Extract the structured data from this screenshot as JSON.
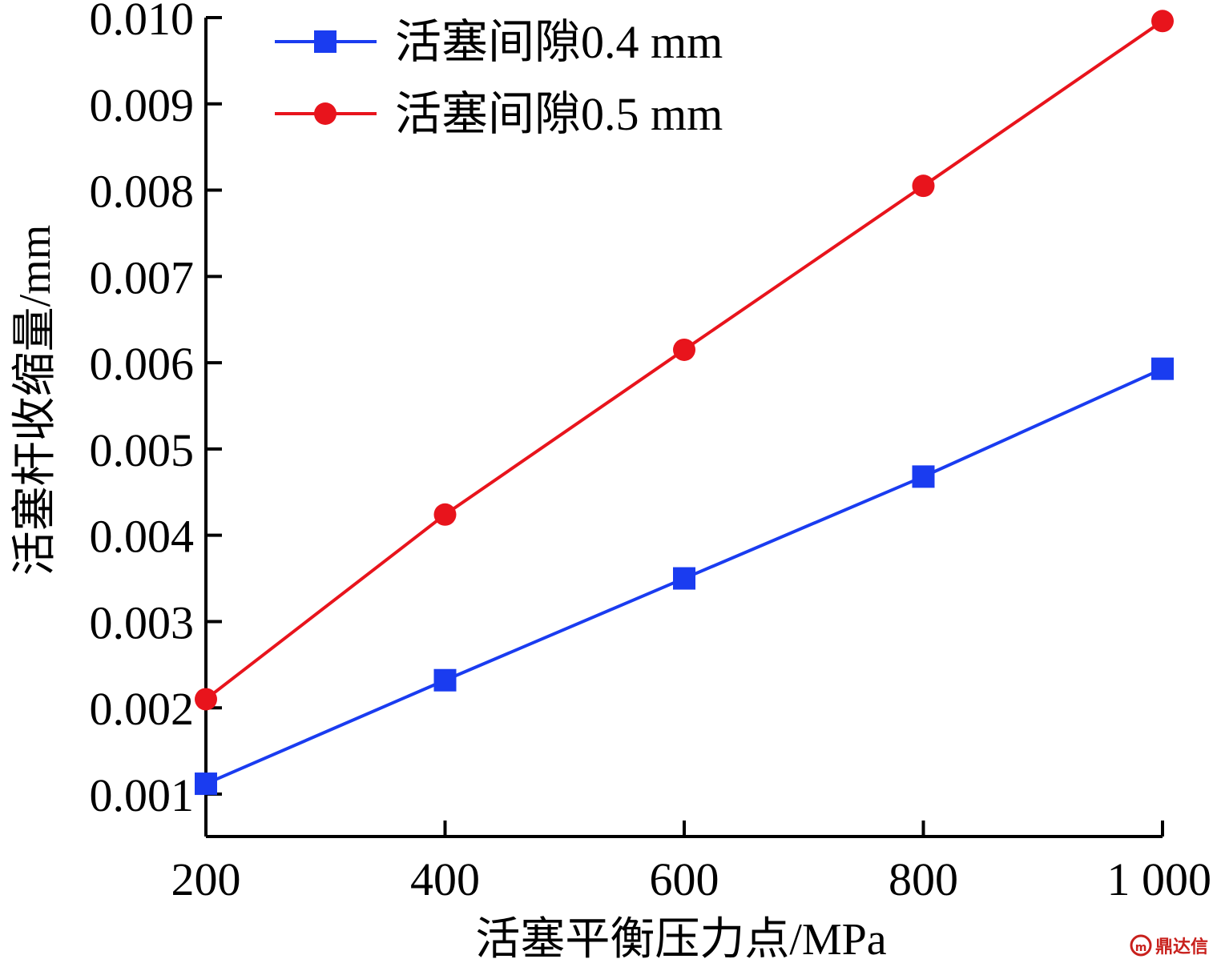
{
  "chart_data": {
    "type": "line",
    "xlabel": "活塞平衡压力点/MPa",
    "ylabel": "活塞杆收缩量/mm",
    "xlim": [
      200,
      1000
    ],
    "ylim": [
      0.0005,
      0.01
    ],
    "x_ticks": [
      200,
      400,
      600,
      800,
      1000
    ],
    "x_tick_labels": [
      "200",
      "400",
      "600",
      "800",
      "1 000"
    ],
    "y_ticks": [
      0.001,
      0.002,
      0.003,
      0.004,
      0.005,
      0.006,
      0.007,
      0.008,
      0.009,
      0.01
    ],
    "y_tick_labels": [
      "0.001",
      "0.002",
      "0.003",
      "0.004",
      "0.005",
      "0.006",
      "0.007",
      "0.008",
      "0.009",
      "0.010"
    ],
    "grid": false,
    "legend_position": "top-left",
    "x": [
      200,
      400,
      600,
      800,
      1000
    ],
    "series": [
      {
        "name": "活塞间隙0.4 mm",
        "color": "#1a3cf0",
        "marker": "square",
        "values": [
          0.00112,
          0.00232,
          0.0035,
          0.00468,
          0.00593
        ]
      },
      {
        "name": "活塞间隙0.5 mm",
        "color": "#e8141c",
        "marker": "circle",
        "values": [
          0.0021,
          0.00424,
          0.00615,
          0.00805,
          0.00996
        ]
      }
    ]
  },
  "watermark": {
    "text": "鼎达信",
    "icon": "logo-icon",
    "color": "#c8201c"
  }
}
